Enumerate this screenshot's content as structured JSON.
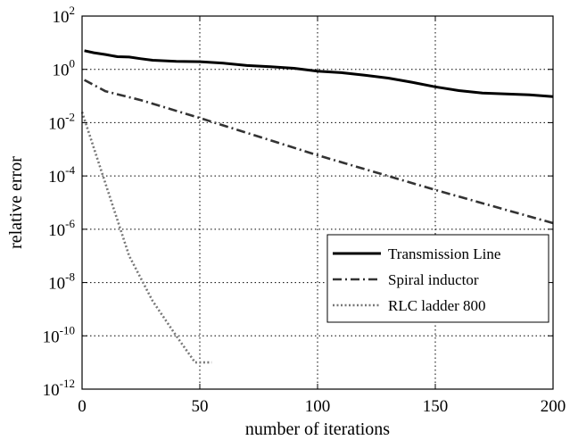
{
  "chart_data": {
    "type": "line",
    "xlabel": "number of iterations",
    "ylabel": "relative error",
    "xlim": [
      0,
      200
    ],
    "ylim_exponent": [
      -12,
      2
    ],
    "y_scale": "log",
    "grid": true,
    "legend_position": "lower-right",
    "x_ticks": [
      {
        "value": 0,
        "label": "0"
      },
      {
        "value": 50,
        "label": "50"
      },
      {
        "value": 100,
        "label": "100"
      },
      {
        "value": 150,
        "label": "150"
      },
      {
        "value": 200,
        "label": "200"
      }
    ],
    "y_ticks": [
      {
        "exp": 2,
        "base": "10",
        "power": "2"
      },
      {
        "exp": 0,
        "base": "10",
        "power": "0"
      },
      {
        "exp": -2,
        "base": "10",
        "power": "-2"
      },
      {
        "exp": -4,
        "base": "10",
        "power": "-4"
      },
      {
        "exp": -6,
        "base": "10",
        "power": "-6"
      },
      {
        "exp": -8,
        "base": "10",
        "power": "-8"
      },
      {
        "exp": -10,
        "base": "10",
        "power": "-10"
      },
      {
        "exp": -12,
        "base": "10",
        "power": "-12"
      }
    ],
    "series": [
      {
        "name": "Transmission Line",
        "style": "solid",
        "color": "#000000",
        "x": [
          1,
          5,
          10,
          15,
          20,
          25,
          30,
          40,
          50,
          60,
          70,
          80,
          90,
          100,
          110,
          120,
          130,
          140,
          150,
          160,
          170,
          180,
          190,
          200
        ],
        "y": [
          5.0,
          4.2,
          3.6,
          3.0,
          2.9,
          2.5,
          2.2,
          2.0,
          1.95,
          1.7,
          1.4,
          1.25,
          1.1,
          0.85,
          0.75,
          0.6,
          0.47,
          0.33,
          0.22,
          0.16,
          0.13,
          0.12,
          0.11,
          0.095
        ]
      },
      {
        "name": "Spiral inductor",
        "style": "dashdot",
        "color": "#333333",
        "x": [
          1,
          10,
          25,
          50,
          100,
          150,
          200
        ],
        "y": [
          0.4,
          0.15,
          0.07,
          0.015,
          0.0006,
          3e-05,
          1.7e-06
        ]
      },
      {
        "name": "RLC ladder 800",
        "style": "dotted",
        "color": "#777777",
        "x": [
          0,
          10,
          20,
          30,
          40,
          48,
          55
        ],
        "y": [
          0.025,
          5e-05,
          1e-07,
          2e-09,
          1e-10,
          1e-11,
          1e-11
        ]
      }
    ]
  }
}
